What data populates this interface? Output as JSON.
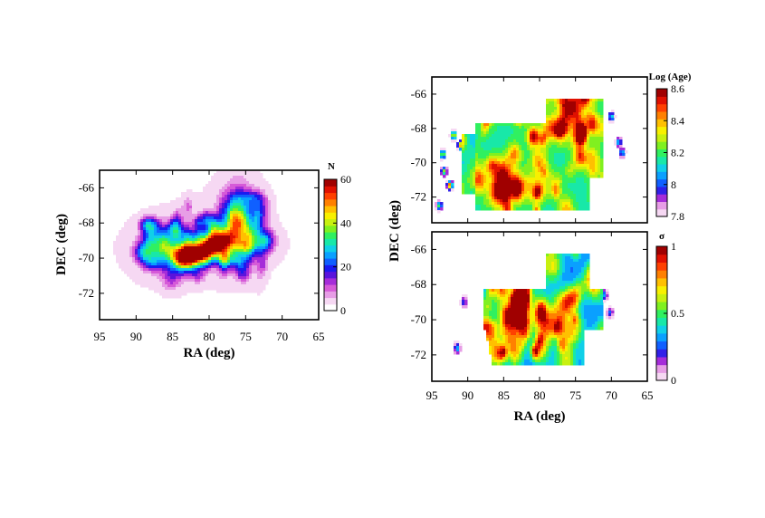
{
  "colors": {
    "N": [
      "#ffffff",
      "#f6d8f3",
      "#e79de6",
      "#d65ad8",
      "#a52cd9",
      "#5a14dc",
      "#1a1af0",
      "#1060ff",
      "#0aa0ff",
      "#10d0e8",
      "#18e8a8",
      "#30f060",
      "#80f020",
      "#c8f010",
      "#f8f000",
      "#ffc000",
      "#ff8000",
      "#ff4000",
      "#e01000",
      "#a00000"
    ],
    "age": [
      "#f6d8f3",
      "#e79de6",
      "#a52cd9",
      "#3020e8",
      "#1060ff",
      "#0aa0ff",
      "#10d0e8",
      "#18e8a8",
      "#30f060",
      "#80f020",
      "#c8f010",
      "#f8f000",
      "#ffc000",
      "#ff8000",
      "#ff4000",
      "#e01000",
      "#a00000"
    ],
    "sigma": [
      "#f6d8f3",
      "#e79de6",
      "#a52cd9",
      "#3020e8",
      "#1060ff",
      "#0aa0ff",
      "#10d0e8",
      "#18e8a8",
      "#30f060",
      "#80f020",
      "#c8f010",
      "#f8f000",
      "#ffc000",
      "#ff8000",
      "#ff4000",
      "#e01000",
      "#a00000"
    ]
  },
  "chart_data": [
    {
      "type": "heatmap",
      "xlabel": "RA (deg)",
      "ylabel": "DEC (deg)",
      "xlim": [
        95,
        65
      ],
      "ylim": [
        -73.5,
        -65
      ],
      "xticks": [
        "95",
        "90",
        "85",
        "80",
        "75",
        "70",
        "65"
      ],
      "yticks": [
        "-66",
        "-68",
        "-70",
        "-72"
      ],
      "colorbar": {
        "title": "N",
        "range": [
          0,
          60
        ],
        "ticks": [
          "0",
          "20",
          "40",
          "60"
        ]
      },
      "features": [
        {
          "ra": 83.5,
          "dec": -70.0,
          "value": 58
        },
        {
          "ra": 81.5,
          "dec": -69.8,
          "value": 42
        },
        {
          "ra": 79.5,
          "dec": -69.3,
          "value": 35
        },
        {
          "ra": 78.0,
          "dec": -69.0,
          "value": 25
        },
        {
          "ra": 76.0,
          "dec": -68.0,
          "value": 22
        },
        {
          "ra": 76.0,
          "dec": -66.8,
          "value": 15
        },
        {
          "ra": 74.0,
          "dec": -69.0,
          "value": 14
        },
        {
          "ra": 86.0,
          "dec": -69.3,
          "value": 12
        },
        {
          "ra": 88.5,
          "dec": -69.5,
          "value": 5
        }
      ]
    },
    {
      "type": "heatmap",
      "xlabel": "",
      "ylabel": "",
      "xlim": [
        95,
        65
      ],
      "ylim": [
        -73.5,
        -65
      ],
      "xticks": [],
      "yticks": [
        "-66",
        "-68",
        "-70",
        "-72"
      ],
      "colorbar": {
        "title": "Log (Age)",
        "range": [
          7.8,
          8.6
        ],
        "ticks": [
          "7.8",
          "8",
          "8.2",
          "8.4",
          "8.6"
        ]
      },
      "features": [
        {
          "ra": 85.0,
          "dec": -70.5,
          "value": 8.45
        },
        {
          "ra": 77.0,
          "dec": -68.0,
          "value": 8.5
        },
        {
          "ra": 80.0,
          "dec": -70.0,
          "value": 8.3
        },
        {
          "ra": 75.0,
          "dec": -67.0,
          "value": 8.2
        },
        {
          "ra": 83.0,
          "dec": -71.5,
          "value": 8.35
        }
      ]
    },
    {
      "type": "heatmap",
      "xlabel": "RA (deg)",
      "ylabel": "",
      "xlim": [
        95,
        65
      ],
      "ylim": [
        -73.5,
        -65
      ],
      "xticks": [
        "95",
        "90",
        "85",
        "80",
        "75",
        "70",
        "65"
      ],
      "yticks": [
        "-66",
        "-68",
        "-70",
        "-72"
      ],
      "colorbar": {
        "title": "σ",
        "range": [
          0,
          1
        ],
        "ticks": [
          "0",
          "0.5",
          "1"
        ]
      },
      "features": [
        {
          "ra": 80.0,
          "dec": -69.8,
          "value": 0.85
        },
        {
          "ra": 76.0,
          "dec": -69.0,
          "value": 0.9
        },
        {
          "ra": 83.0,
          "dec": -68.8,
          "value": 0.75
        },
        {
          "ra": 78.0,
          "dec": -67.0,
          "value": 0.6
        },
        {
          "ra": 85.0,
          "dec": -70.5,
          "value": 0.55
        }
      ]
    }
  ],
  "shared_ylabel": "DEC (deg)"
}
